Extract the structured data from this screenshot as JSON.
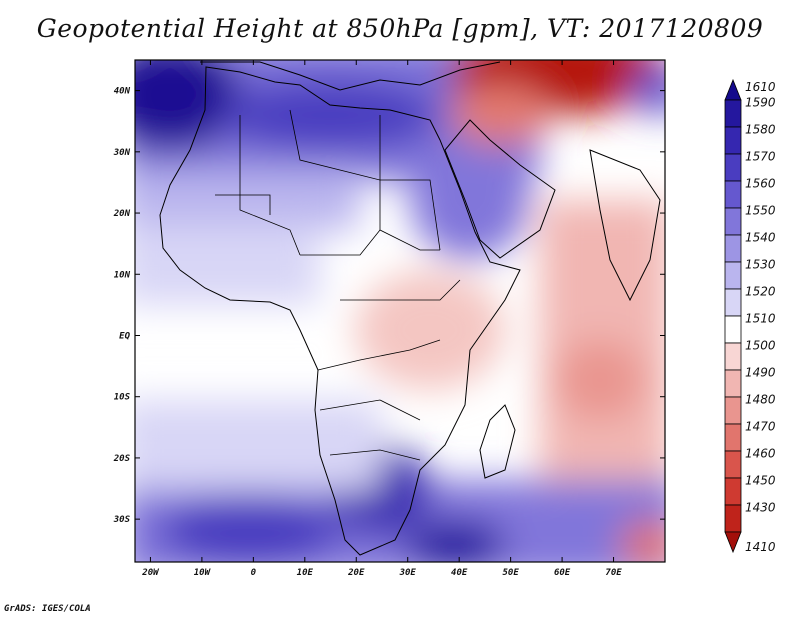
{
  "title": "Geopotential Height at 850hPa [gpm], VT: 2017120809",
  "footer": "GrADS: IGES/COLA",
  "map": {
    "lon_range": [
      -23,
      80
    ],
    "lat_range": [
      -37,
      45
    ],
    "x_ticks": [
      {
        "lon": -20,
        "label": "20W"
      },
      {
        "lon": -10,
        "label": "10W"
      },
      {
        "lon": 0,
        "label": "0"
      },
      {
        "lon": 10,
        "label": "10E"
      },
      {
        "lon": 20,
        "label": "20E"
      },
      {
        "lon": 30,
        "label": "30E"
      },
      {
        "lon": 40,
        "label": "40E"
      },
      {
        "lon": 50,
        "label": "50E"
      },
      {
        "lon": 60,
        "label": "60E"
      },
      {
        "lon": 70,
        "label": "70E"
      }
    ],
    "y_ticks": [
      {
        "lat": 40,
        "label": "40N"
      },
      {
        "lat": 30,
        "label": "30N"
      },
      {
        "lat": 20,
        "label": "20N"
      },
      {
        "lat": 10,
        "label": "10N"
      },
      {
        "lat": 0,
        "label": "EQ"
      },
      {
        "lat": -10,
        "label": "10S"
      },
      {
        "lat": -20,
        "label": "20S"
      },
      {
        "lat": -30,
        "label": "30S"
      }
    ]
  },
  "colorbar": {
    "levels": [
      {
        "label": "1610",
        "color": "#140a8c"
      },
      {
        "label": "1590",
        "color": "#24179e"
      },
      {
        "label": "1580",
        "color": "#3527b0"
      },
      {
        "label": "1570",
        "color": "#4a3dc0"
      },
      {
        "label": "1560",
        "color": "#6558cf"
      },
      {
        "label": "1550",
        "color": "#8176da"
      },
      {
        "label": "1540",
        "color": "#9d95e4"
      },
      {
        "label": "1530",
        "color": "#bab5ee"
      },
      {
        "label": "1520",
        "color": "#d8d6f6"
      },
      {
        "label": "1510",
        "color": "#ffffff"
      },
      {
        "label": "1500",
        "color": "#f8d6d4"
      },
      {
        "label": "1490",
        "color": "#f1b6b2"
      },
      {
        "label": "1480",
        "color": "#e9958f"
      },
      {
        "label": "1470",
        "color": "#e1756d"
      },
      {
        "label": "1460",
        "color": "#d9554c"
      },
      {
        "label": "1450",
        "color": "#cf3a31"
      },
      {
        "label": "1430",
        "color": "#bf231b"
      },
      {
        "label": "1410",
        "color": "#a30f0a"
      }
    ]
  }
}
